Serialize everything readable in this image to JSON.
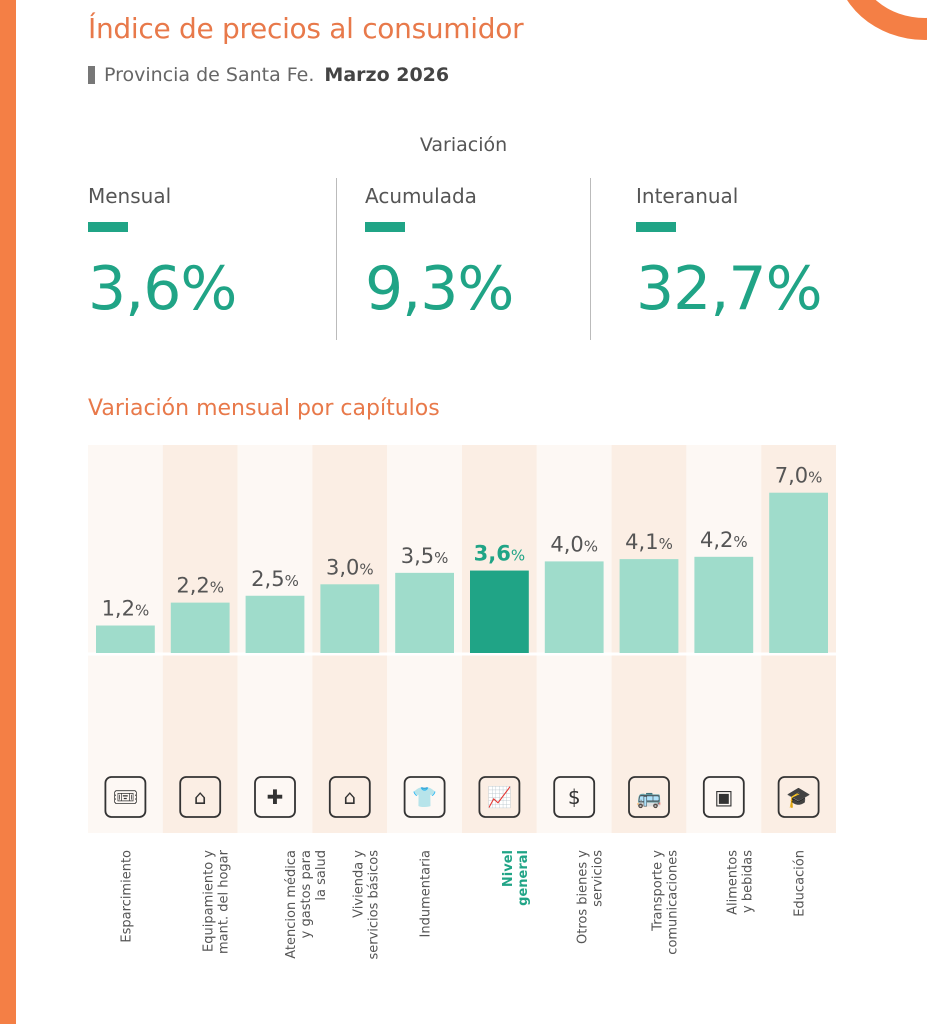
{
  "header": {
    "title": "Índice de precios al consumidor",
    "subtitle_region": "Provincia de Santa Fe.",
    "subtitle_period": "Marzo 2026"
  },
  "variation": {
    "heading": "Variación",
    "kpis": [
      {
        "label": "Mensual",
        "value": "3,6%"
      },
      {
        "label": "Acumulada",
        "value": "9,3%"
      },
      {
        "label": "Interanual",
        "value": "32,7%"
      }
    ]
  },
  "section_title": "Variación mensual por capítulos",
  "colors": {
    "accent_orange": "#F47F45",
    "title_orange": "#E8794A",
    "highlight_green": "#20A486",
    "bar_light": "#9FDCCB",
    "band_light": "#FDF8F4",
    "band_peach": "#FBEEE4"
  },
  "chart_data": {
    "type": "bar",
    "title": "Variación mensual por capítulos",
    "xlabel": "",
    "ylabel": "",
    "ylim": [
      0,
      7.5
    ],
    "grid": false,
    "value_suffix": "%",
    "highlight_category": "Nivel general",
    "categories": [
      "Esparcimiento",
      "Equipamiento y\nmant. del hogar",
      "Atencion médica\ny gastos para\nla salud",
      "Vivienda y\nservicios básicos",
      "Indumentaria",
      "Nivel\ngeneral",
      "Otros bienes y\nservicios",
      "Transporte y\ncomunicaciones",
      "Alimentos\ny bebidas",
      "Educación"
    ],
    "values": [
      1.2,
      2.2,
      2.5,
      3.0,
      3.5,
      3.6,
      4.0,
      4.1,
      4.2,
      7.0
    ],
    "value_labels": [
      "1,2",
      "2,2",
      "2,5",
      "3,0",
      "3,5",
      "3,6",
      "4,0",
      "4,1",
      "4,2",
      "7,0"
    ],
    "icons": [
      "ticket-icon",
      "house-wrench-icon",
      "health-hands-icon",
      "house-dollar-icon",
      "clothing-icon",
      "economy-chart-icon",
      "hand-dollar-icon",
      "transport-route-icon",
      "grocery-box-icon",
      "education-cap-icon"
    ]
  }
}
